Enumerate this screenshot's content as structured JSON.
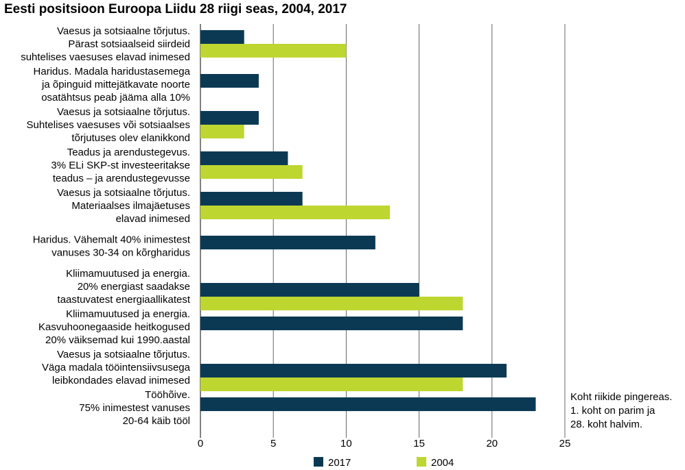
{
  "chart_data": {
    "type": "bar",
    "orientation": "horizontal",
    "title": "Eesti positsioon Euroopa Liidu 28 riigi seas, 2004, 2017",
    "xlim": [
      0,
      25
    ],
    "xticks": [
      "0",
      "5",
      "10",
      "15",
      "20",
      "25"
    ],
    "grid": true,
    "legend_position": "bottom",
    "categories": [
      [
        "Vaesus ja sotsiaalne tõrjutus.",
        "Pärast sotsiaalseid siirdeid",
        "suhtelises vaesuses elavad inimesed"
      ],
      [
        "Haridus. Madala haridustasemega",
        "ja õpinguid mittejätkavate noorte",
        "osatähtsus peab jääma alla 10%"
      ],
      [
        "Vaesus ja sotsiaalne tõrjutus.",
        "Suhtelises vaesuses või sotsiaalses",
        "tõrjutuses olev elanikkond"
      ],
      [
        "Teadus ja arendustegevus.",
        "3% ELi SKP-st investeeritakse",
        "teadus – ja arendustegevusse"
      ],
      [
        "Vaesus ja sotsiaalne tõrjutus.",
        "Materiaalses ilmajäetuses",
        "elavad inimesed"
      ],
      [
        "Haridus. Vähemalt 40% inimestest",
        "vanuses 30-34 on kõrgharidus"
      ],
      [
        "Kliimamuutused ja energia.",
        "20% energiast saadakse",
        "taastuvatest energiaallikatest"
      ],
      [
        "Kliimamuutused ja energia.",
        "Kasvuhoonegaaside heitkogused",
        "20% väiksemad kui 1990.aastal"
      ],
      [
        "Vaesus ja sotsiaalne tõrjutus.",
        "Väga madala tööintensiivsusega",
        "leibkondades elavad inimesed"
      ],
      [
        "Tööhõive.",
        "75% inimestest vanuses",
        "20-64 käib tööl"
      ]
    ],
    "series": [
      {
        "name": "2017",
        "color": "#0b3954",
        "values": [
          3,
          4,
          4,
          6,
          7,
          12,
          15,
          18,
          21,
          23
        ]
      },
      {
        "name": "2004",
        "color": "#bed630",
        "values": [
          10,
          null,
          3,
          7,
          13,
          null,
          18,
          null,
          18,
          null
        ]
      }
    ],
    "annotation": [
      "Koht riikide pingereas.",
      "1. koht on parim ja",
      "28. koht halvim."
    ]
  }
}
